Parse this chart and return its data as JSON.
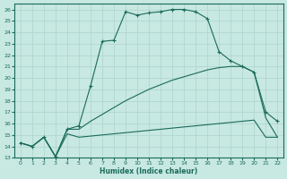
{
  "xlabel": "Humidex (Indice chaleur)",
  "bg_color": "#c8e8e2",
  "grid_color": "#b0d8d0",
  "line_color": "#1a6b5a",
  "xlim": [
    -0.5,
    22.5
  ],
  "ylim": [
    13,
    26.5
  ],
  "xticks": [
    0,
    1,
    2,
    3,
    4,
    5,
    6,
    7,
    8,
    9,
    10,
    11,
    12,
    13,
    14,
    15,
    16,
    17,
    18,
    19,
    20,
    21,
    22
  ],
  "yticks": [
    13,
    14,
    15,
    16,
    17,
    18,
    19,
    20,
    21,
    22,
    23,
    24,
    25,
    26
  ],
  "series": [
    {
      "x": [
        0,
        1,
        2,
        3,
        4,
        5,
        6,
        7,
        8,
        9,
        10,
        11,
        12,
        13,
        14,
        15,
        16,
        17,
        18,
        19,
        20,
        21,
        22
      ],
      "y": [
        14.3,
        14.0,
        14.8,
        13.1,
        15.1,
        14.8,
        14.9,
        15.0,
        15.1,
        15.2,
        15.3,
        15.4,
        15.5,
        15.6,
        15.7,
        15.8,
        15.9,
        16.0,
        16.1,
        16.2,
        16.3,
        14.8,
        14.8
      ],
      "marker": false
    },
    {
      "x": [
        0,
        1,
        2,
        3,
        4,
        5,
        6,
        7,
        8,
        9,
        10,
        11,
        12,
        13,
        14,
        15,
        16,
        17,
        18,
        19,
        20,
        21,
        22
      ],
      "y": [
        14.3,
        14.0,
        14.8,
        13.1,
        15.5,
        15.5,
        16.2,
        16.8,
        17.4,
        18.0,
        18.5,
        19.0,
        19.4,
        19.8,
        20.1,
        20.4,
        20.7,
        20.9,
        21.0,
        21.0,
        20.5,
        16.5,
        14.8
      ],
      "marker": false
    },
    {
      "x": [
        0,
        1,
        2,
        3,
        4,
        5,
        6,
        7,
        8,
        9,
        10,
        11,
        12,
        13,
        14,
        15,
        16,
        17,
        18,
        19,
        20,
        21,
        22
      ],
      "y": [
        14.3,
        14.0,
        14.8,
        13.1,
        15.5,
        15.8,
        19.3,
        23.2,
        23.3,
        25.8,
        25.5,
        25.7,
        25.8,
        26.0,
        26.0,
        25.8,
        25.2,
        22.3,
        21.5,
        21.0,
        20.5,
        17.0,
        16.2
      ],
      "marker": true
    }
  ]
}
